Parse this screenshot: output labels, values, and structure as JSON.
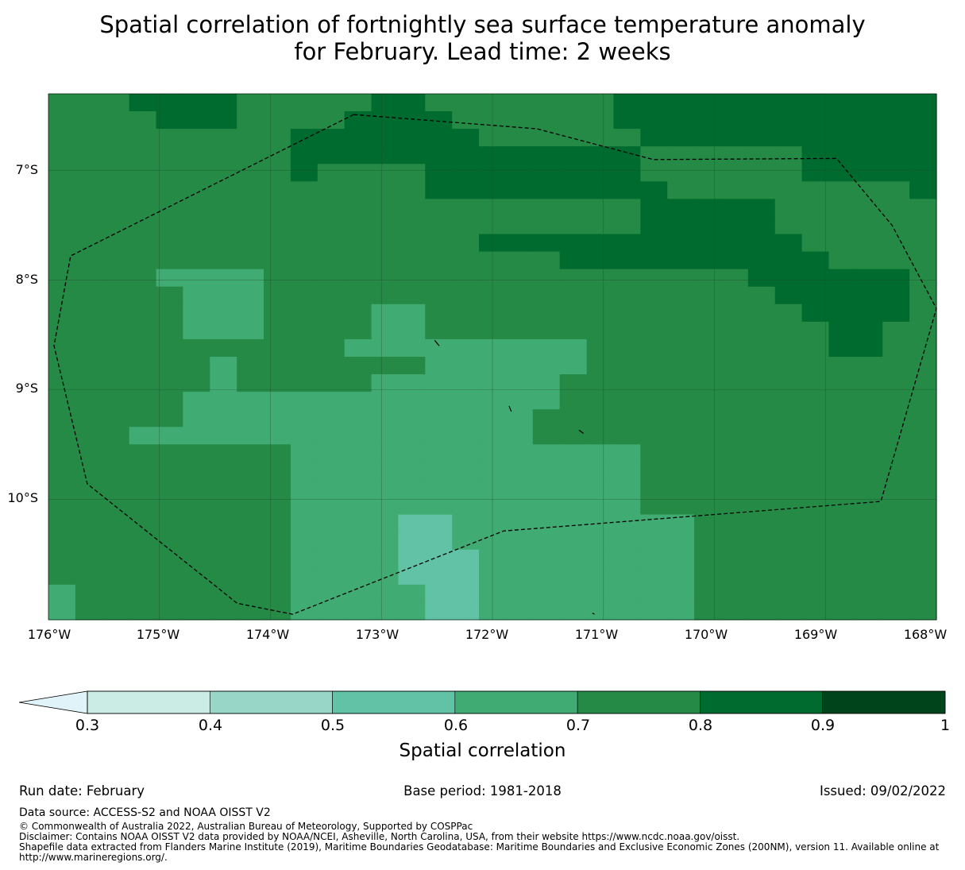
{
  "title": {
    "line1": "Spatial correlation of fortnightly sea surface temperature anomaly",
    "line2": "for February. Lead time: 2 weeks"
  },
  "map": {
    "lat_labels": [
      "7°S",
      "8°S",
      "9°S",
      "10°S"
    ],
    "lon_labels": [
      "176°W",
      "175°W",
      "174°W",
      "173°W",
      "172°W",
      "171°W",
      "170°W",
      "169°W",
      "168°W"
    ],
    "lon_range": [
      -176,
      -168
    ],
    "lat_range": [
      -11.1,
      -6.3
    ],
    "levels": {
      "0.3": "#e0f3f8",
      "0.4": "#cbebe5",
      "0.5": "#98d6c8",
      "0.6": "#62c2a5",
      "0.7": "#40ab73",
      "0.8": "#248a45",
      "0.9": "#006b2e",
      "1.0": "#00441b"
    },
    "grid_rows": [
      "BBBCCCCBBBBBCCBBBBBBBCCCCCCCCCCCC",
      "BBBBCCCBBBBCCCCBBBBBBCCCCCCCCCCCC",
      "BBBBBBBBBCCCCCCCBBBBBBCCCCCCCCCCC",
      "BBBBBBBBBCCCCCCCCCCCCCBBBBBBCCCCC",
      "BBBBBBBBBCBBBBCCCCCCCCBBBBBBCCCCC",
      "BBBBBBBBBBBBBBCCCCCCCCCBBBBBBBBBC",
      "BBBBBBBBBBBBBBBBBBBBBBCCCCCBBBBBB",
      "BBBBBBBBBBBBBBBBBBBBBBCCCCCBBBBBB",
      "BBBBBBBBBBBBBBBBCCCCCCCCCCCCBBBBB",
      "BBBBBBBBBBBBBBBBBBBCCCCCCCCCCBBBB",
      "BBBBAAAABBBBBBBBBBBBBBBBBBCCCCCCB",
      "BBBBBAAABBBBBBBBBBBBBBBBBBBCCCCCB",
      "BBBBBAAABBBBAABBBBBBBBBBBBBBCCCCB",
      "BBBBBAAABBBBAABBBBBBBBBBBBBBBCCBB",
      "BBBBBBBBBBBAAAAAAAAABBBBBBBBBCCBB",
      "BBBBBBABBBBBBBAAAAAABBBBBBBBBBBBB",
      "BBBBBBABBBBBAAAAAAABBBBBBBBBBBBBB",
      "BBBBBAAAAAAAAAAAAAABBBBBBBBBBBBBB",
      "BBBBBAAAAAAAAAAAAABBBBBBBBBBBBBBB",
      "BBBAAAAAAAAAAAAAAABBBBBBBBBBBBBBB",
      "BBBBBBBBBAAAAAAAAAAAAABBBBBBBBBBB",
      "BBBBBBBBBAAAAAAAAAAAAABBBBBBBBBBB",
      "BBBBBBBBBAAAAAAAAAAAAABBBBBBBBBBB",
      "BBBBBBBBBAAAAAAAAAAAAABBBBBBBBBBB",
      "BBBBBBBBBAAAAMMAAAAAAAAABBBBBBBBB",
      "BBBBBBBBBAAAAMMAAAAAAAAABBBBBBBBB",
      "BBBBBBBBBAAAAMMMAAAAAAAABBBBBBBBB",
      "BBBBBBBBBAAAAMMMAAAAAAAABBBBBBBBB",
      "ABBBBBBBBAAAAAMMAAAAAAAABBBBBBBBB",
      "ABBBBBBBBAAAAAMMAAAAAAAABBBBBBBBB"
    ],
    "grid_key": {
      "M": "0.6",
      "A": "0.7",
      "B": "0.8",
      "C": "0.9"
    },
    "eez_boundary_lonlat": [
      [
        -173.25,
        -6.49
      ],
      [
        -171.6,
        -6.62
      ],
      [
        -170.55,
        -6.9
      ],
      [
        -168.9,
        -6.89
      ],
      [
        -168.4,
        -7.5
      ],
      [
        -168.0,
        -8.26
      ],
      [
        -168.5,
        -10.02
      ],
      [
        -171.9,
        -10.29
      ],
      [
        -173.8,
        -11.05
      ],
      [
        -174.3,
        -10.95
      ],
      [
        -175.65,
        -9.86
      ],
      [
        -175.95,
        -8.6
      ],
      [
        -175.8,
        -7.78
      ],
      [
        -173.25,
        -6.49
      ]
    ]
  },
  "colorbar": {
    "label": "Spatial correlation",
    "ticks": [
      "0.3",
      "0.4",
      "0.5",
      "0.6",
      "0.7",
      "0.8",
      "0.9",
      "1"
    ],
    "colors": [
      "#cbebe5",
      "#98d6c8",
      "#62c2a5",
      "#40ab73",
      "#248a45",
      "#006b2e",
      "#00441b"
    ],
    "extend_low_color": "#e0f3f8"
  },
  "footer": {
    "run_date": "Run date: February",
    "base_period": "Base period: 1981-2018",
    "issued": "Issued: 09/02/2022",
    "data_source": "Data source: ACCESS-S2 and NOAA OISST V2",
    "copyright": "© Commonwealth of Australia 2022, Australian Bureau of Meteorology, Supported by COSPPac",
    "disclaimer": "Disclaimer: Contains NOAA OISST V2 data provided by NOAA/NCEI, Asheville, North Carolina, USA, from their website https://www.ncdc.noaa.gov/oisst.",
    "shapefile": "Shapefile data extracted from Flanders Marine Institute (2019), Maritime Boundaries Geodatabase: Maritime Boundaries and Exclusive Economic Zones (200NM), version 11. Available online at http://www.marineregions.org/."
  }
}
